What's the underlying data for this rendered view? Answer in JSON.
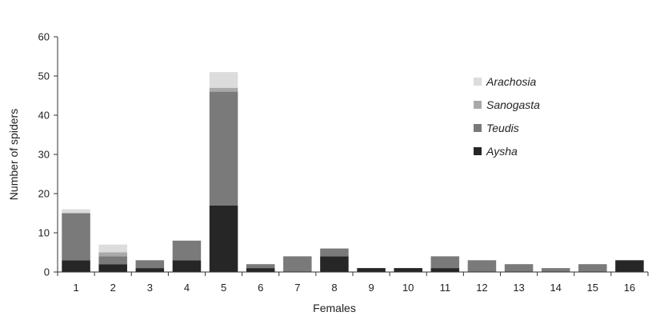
{
  "chart_data": {
    "type": "bar",
    "stacked": true,
    "title": "",
    "xlabel": "Females",
    "ylabel": "Number of spiders",
    "ylim": [
      0,
      60
    ],
    "yticks": [
      "0",
      "10",
      "20",
      "30",
      "40",
      "50",
      "60"
    ],
    "categories": [
      "1",
      "2",
      "3",
      "4",
      "5",
      "6",
      "7",
      "8",
      "9",
      "10",
      "11",
      "12",
      "13",
      "14",
      "15",
      "16"
    ],
    "series": [
      {
        "name": "Aysha",
        "color": "#262626",
        "values": [
          3,
          2,
          1,
          3,
          17,
          1,
          0,
          4,
          1,
          1,
          1,
          0,
          0,
          0,
          0,
          3
        ]
      },
      {
        "name": "Teudis",
        "color": "#7a7a7a",
        "values": [
          12,
          2,
          2,
          5,
          29,
          1,
          4,
          2,
          0,
          0,
          3,
          3,
          2,
          1,
          2,
          0
        ]
      },
      {
        "name": "Sanogasta",
        "color": "#a9a9a9",
        "values": [
          0,
          1,
          0,
          0,
          1,
          0,
          0,
          0,
          0,
          0,
          0,
          0,
          0,
          0,
          0,
          0
        ]
      },
      {
        "name": "Arachosia",
        "color": "#dcdcdc",
        "values": [
          1,
          2,
          0,
          0,
          4,
          0,
          0,
          0,
          0,
          0,
          0,
          0,
          0,
          0,
          0,
          0
        ]
      }
    ],
    "legend": {
      "position": "top-right",
      "order": [
        "Arachosia",
        "Sanogasta",
        "Teudis",
        "Aysha"
      ]
    },
    "grid": false
  }
}
